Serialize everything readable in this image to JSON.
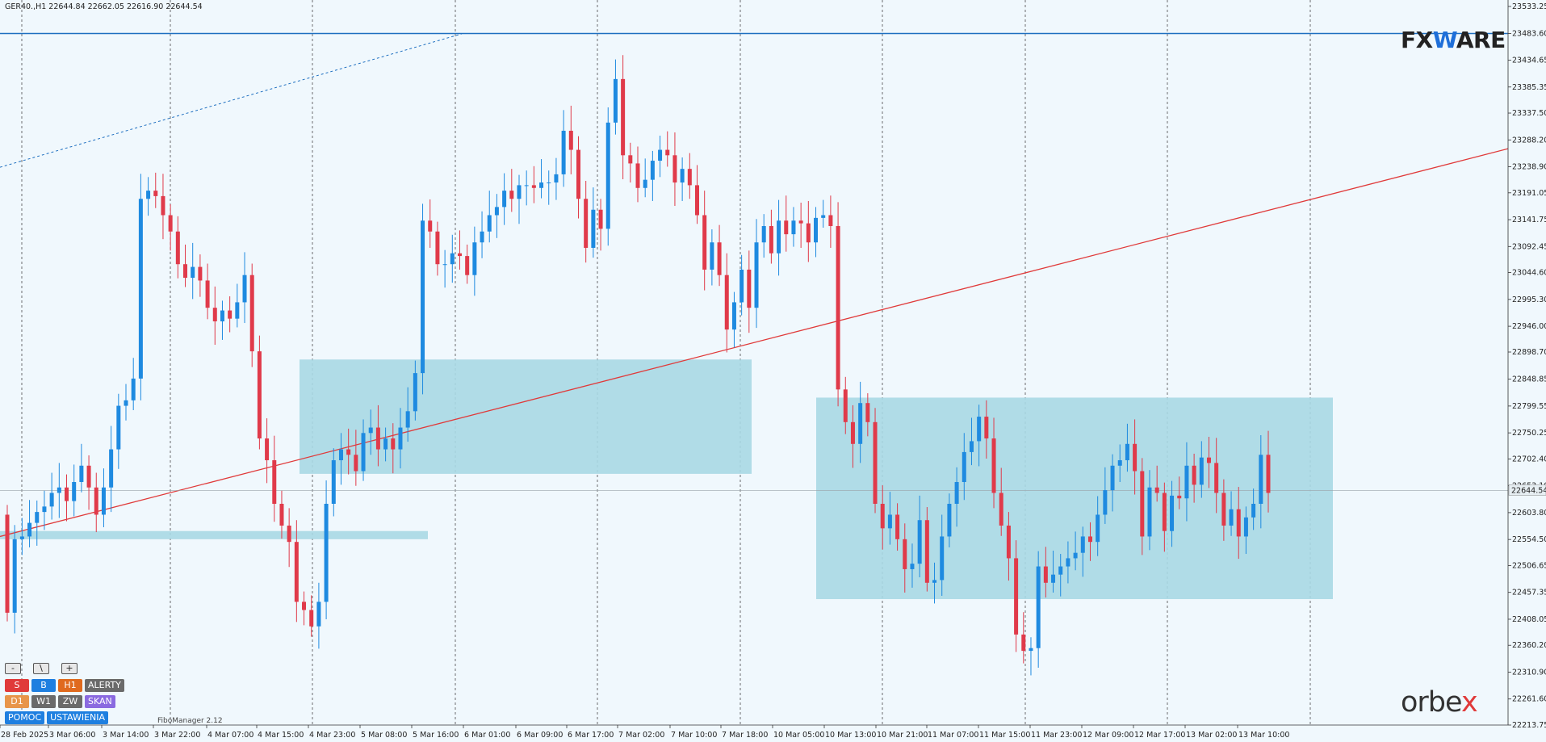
{
  "symbol_info": "GER40.,H1  22644.84 22662.05 22616.90 22644.54",
  "logos": {
    "fxware": "FXWARE",
    "orbex": "orbex"
  },
  "fibo_manager": "FiboManager 2.12",
  "toolbar": {
    "row1": [
      "-",
      "\\",
      "+"
    ],
    "row2": [
      {
        "label": "S",
        "color": "#e03a3a"
      },
      {
        "label": "B",
        "color": "#1e7fe0"
      },
      {
        "label": "H1",
        "color": "#e06a1e"
      },
      {
        "label": "ALERTY",
        "color": "#6a6a6a"
      }
    ],
    "row3": [
      {
        "label": "D1",
        "color": "#e8954a"
      },
      {
        "label": "W1",
        "color": "#6a6a6a"
      },
      {
        "label": "ZW",
        "color": "#6a6a6a"
      },
      {
        "label": "SKAN",
        "color": "#8a6ae0"
      }
    ],
    "row4": [
      {
        "label": "POMOC",
        "color": "#1e7fe0"
      },
      {
        "label": "USTAWIENIA",
        "color": "#1e7fe0"
      }
    ]
  },
  "colors": {
    "bull": "#1e8ae0",
    "bear": "#e03a4a",
    "zone": "#a8d8e4",
    "trend": "#e03a3a",
    "resistance": "#1e6fc0",
    "background": "#f0f8fd"
  },
  "chart_data": {
    "type": "candlestick",
    "symbol": "GER40.",
    "timeframe": "H1",
    "current_price": "22644.54",
    "ylim": [
      22213.75,
      23533.25
    ],
    "y_ticks": [
      "23533.25",
      "23483.60",
      "23434.65",
      "23385.35",
      "23337.50",
      "23288.20",
      "23238.90",
      "23191.05",
      "23141.75",
      "23092.45",
      "23044.60",
      "22995.30",
      "22946.00",
      "22898.70",
      "22848.85",
      "22799.55",
      "22750.25",
      "22702.40",
      "22653.10",
      "22603.80",
      "22554.50",
      "22506.65",
      "22457.35",
      "22408.05",
      "22360.20",
      "22310.90",
      "22261.60",
      "22213.75"
    ],
    "x_ticks": [
      "28 Feb 2025",
      "3 Mar 06:00",
      "3 Mar 14:00",
      "3 Mar 22:00",
      "4 Mar 07:00",
      "4 Mar 15:00",
      "4 Mar 23:00",
      "5 Mar 08:00",
      "5 Mar 16:00",
      "6 Mar 01:00",
      "6 Mar 09:00",
      "6 Mar 17:00",
      "7 Mar 02:00",
      "7 Mar 10:00",
      "7 Mar 18:00",
      "10 Mar 05:00",
      "10 Mar 13:00",
      "10 Mar 21:00",
      "11 Mar 07:00",
      "11 Mar 15:00",
      "11 Mar 23:00",
      "12 Mar 09:00",
      "12 Mar 17:00",
      "13 Mar 02:00",
      "13 Mar 10:00"
    ],
    "levels": {
      "resistance": 23483.6
    },
    "ohlc_closes": [
      22420,
      22555,
      22560,
      22585,
      22605,
      22615,
      22640,
      22650,
      22625,
      22660,
      22690,
      22650,
      22600,
      22650,
      22720,
      22800,
      22810,
      22850,
      23180,
      23195,
      23185,
      23150,
      23120,
      23060,
      23035,
      23055,
      23030,
      22980,
      22955,
      22975,
      22960,
      22990,
      23040,
      22900,
      22740,
      22700,
      22620,
      22580,
      22550,
      22440,
      22425,
      22395,
      22440,
      22620,
      22700,
      22720,
      22710,
      22680,
      22750,
      22760,
      22720,
      22740,
      22720,
      22760,
      22790,
      22860,
      23140,
      23120,
      23060,
      23060,
      23080,
      23075,
      23040,
      23100,
      23120,
      23150,
      23165,
      23195,
      23180,
      23205,
      23205,
      23200,
      23210,
      23210,
      23225,
      23305,
      23270,
      23180,
      23090,
      23160,
      23125,
      23320,
      23400,
      23260,
      23245,
      23200,
      23215,
      23250,
      23270,
      23260,
      23210,
      23235,
      23205,
      23150,
      23050,
      23100,
      23040,
      22940,
      22990,
      23050,
      22980,
      23100,
      23130,
      23080,
      23140,
      23115,
      23140,
      23135,
      23100,
      23145,
      23150,
      23130,
      22830,
      22770,
      22730,
      22805,
      22770,
      22620,
      22575,
      22600,
      22555,
      22500,
      22510,
      22590,
      22475,
      22480,
      22560,
      22620,
      22660,
      22715,
      22735,
      22780,
      22740,
      22640,
      22580,
      22520,
      22380,
      22350,
      22355,
      22505,
      22475,
      22490,
      22505,
      22520,
      22530,
      22560,
      22550,
      22600,
      22645,
      22690,
      22700,
      22730,
      22680,
      22560,
      22650,
      22640,
      22570,
      22635,
      22630,
      22690,
      22655,
      22705,
      22695,
      22640,
      22580,
      22610,
      22560,
      22595,
      22620,
      22710,
      22640
    ]
  }
}
